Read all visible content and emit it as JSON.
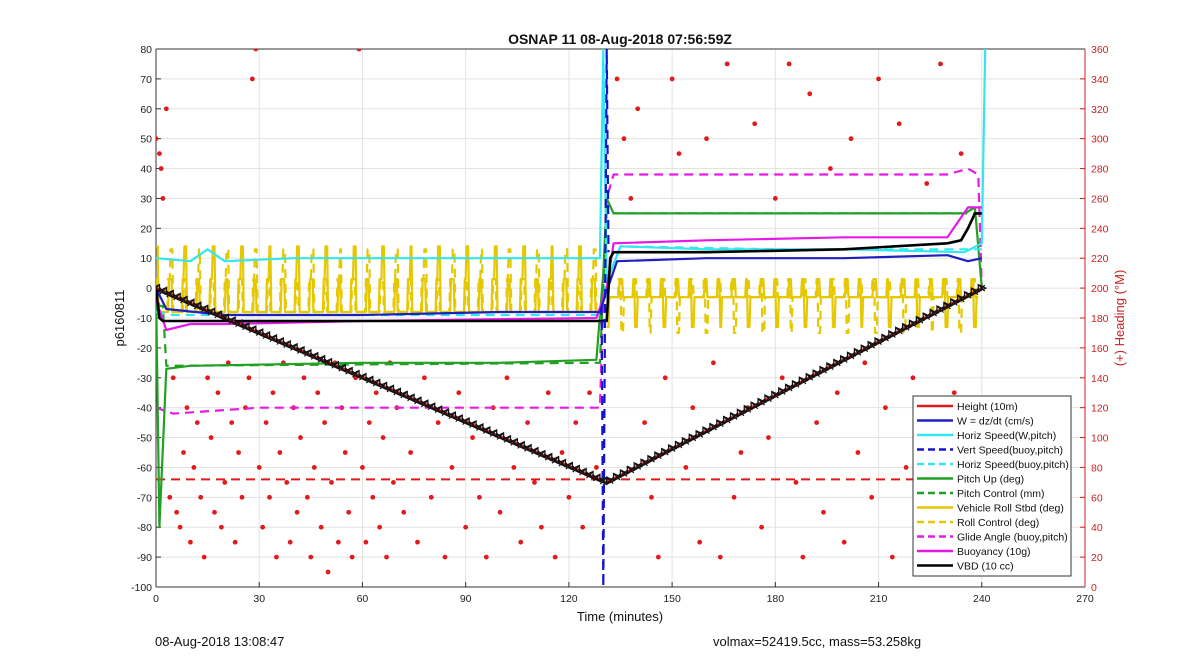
{
  "chart_data": {
    "type": "line",
    "title": "OSNAP 11 08-Aug-2018 07:56:59Z",
    "xlabel": "Time (minutes)",
    "ylabel_left": "p6160811",
    "ylabel_right": "(+) Heading (°M)",
    "xlim": [
      0,
      270
    ],
    "ylim_left": [
      -100,
      80
    ],
    "ylim_right": [
      0,
      360
    ],
    "xticks": [
      0,
      30,
      60,
      90,
      120,
      150,
      180,
      210,
      240,
      270
    ],
    "yticks_left": [
      -100,
      -90,
      -80,
      -70,
      -60,
      -50,
      -40,
      -30,
      -20,
      -10,
      0,
      10,
      20,
      30,
      40,
      50,
      60,
      70,
      80
    ],
    "yticks_right": [
      0,
      20,
      40,
      60,
      80,
      100,
      120,
      140,
      160,
      180,
      200,
      220,
      240,
      260,
      280,
      300,
      320,
      340,
      360
    ],
    "grid": true,
    "legend_position": "bottom-right",
    "colors": {
      "height": "#e31a1c",
      "w": "#1f1fbf",
      "horiz_speed": "#33e6f0",
      "vert_speed_buoy": "#1414d0",
      "pitch": "#22a022",
      "roll": "#e6c800",
      "glide": "#e619e6",
      "buoyancy": "#e619e6",
      "vbd": "#000000",
      "heading_dots": "#e31a1c",
      "right_axis": "#cc2222"
    },
    "series": [
      {
        "name": "Height (10m)",
        "key": "height",
        "style": "solid",
        "x": [
          0,
          131,
          240
        ],
        "y": [
          0,
          -65,
          0
        ]
      },
      {
        "name": "W = dz/dt (cm/s)",
        "key": "w",
        "style": "solid",
        "x": [
          0,
          3,
          20,
          60,
          100,
          129,
          131,
          134,
          160,
          200,
          230,
          236,
          240
        ],
        "y": [
          0,
          -7,
          -9,
          -9,
          -8,
          -8,
          -1,
          9,
          10,
          10,
          11,
          9,
          10
        ]
      },
      {
        "name": "Horiz Speed(W,pitch)",
        "key": "horiz_speed",
        "style": "solid",
        "x": [
          0,
          10,
          15,
          20,
          40,
          80,
          129,
          130,
          131,
          135,
          160,
          200,
          235,
          240,
          241
        ],
        "y": [
          10,
          9,
          13,
          9,
          10,
          10,
          10,
          80,
          2,
          14,
          13,
          13,
          12,
          15,
          80
        ]
      },
      {
        "name": "Vert Speed(buoy,pitch)",
        "key": "vert_speed_buoy",
        "style": "dashed",
        "x": [
          129.5,
          130,
          131,
          131.5
        ],
        "y": [
          -6,
          -100,
          80,
          12
        ]
      },
      {
        "name": "Horiz Speed(buoy,pitch)",
        "key": "horiz_speed_buoy",
        "style": "dashed",
        "x": [
          0,
          5,
          40,
          90,
          129,
          131,
          135,
          180,
          240
        ],
        "y": [
          -8,
          -9,
          -9,
          -9,
          -9,
          2,
          14,
          13,
          13
        ]
      },
      {
        "name": "Pitch Up (deg)",
        "key": "pitch",
        "style": "solid",
        "x": [
          0,
          1,
          3,
          10,
          60,
          100,
          128,
          130,
          131,
          133,
          160,
          200,
          235,
          238,
          240
        ],
        "y": [
          0,
          -80,
          -27,
          -26,
          -25,
          -25,
          -24,
          5,
          30,
          25,
          25,
          25,
          25,
          27,
          0
        ]
      },
      {
        "name": "Pitch Control (mm)",
        "key": "pitch_ctrl",
        "style": "dashed",
        "x": [
          0,
          1,
          2,
          3,
          129,
          131,
          133,
          240
        ],
        "y": [
          0,
          -6,
          -6,
          -26,
          -25,
          26,
          25,
          25
        ]
      },
      {
        "name": "Vehicle Roll Stbd (deg)",
        "key": "roll",
        "style": "solid",
        "start": 0,
        "end": 129,
        "period": 8.2,
        "level_low": -8,
        "level_high": 3,
        "spike": 14,
        "phase": 0
      },
      {
        "name": "Vehicle Roll Stbd (deg)",
        "key": "roll2",
        "style": "solid",
        "start": 131,
        "end": 239,
        "period": 8.2,
        "level_low": -3,
        "level_high": 3,
        "spike": -13,
        "phase": 0
      },
      {
        "name": "Roll Control (deg)",
        "key": "roll_ctrl",
        "style": "dashed",
        "start": 0,
        "end": 129,
        "period": 8.2,
        "level_low": -8,
        "level_high": 3,
        "spike": 13,
        "phase": 4.1
      },
      {
        "name": "Roll Control (deg)",
        "key": "roll_ctrl2",
        "style": "dashed",
        "start": 131,
        "end": 239,
        "period": 8.2,
        "level_low": -3,
        "level_high": 3,
        "spike": -15,
        "phase": 4.1
      },
      {
        "name": "Glide Angle (buoy,pitch)",
        "key": "glide",
        "style": "dashed",
        "x": [
          0,
          5,
          30,
          90,
          129,
          131,
          133,
          180,
          230,
          236,
          239,
          240
        ],
        "y": [
          -40,
          -42,
          -40,
          -40,
          -40,
          30,
          38,
          38,
          38,
          40,
          38,
          0
        ]
      },
      {
        "name": "Buoyancy (10g)",
        "key": "buoyancy",
        "style": "solid",
        "x": [
          0,
          3,
          10,
          20,
          60,
          128,
          131,
          133,
          160,
          200,
          230,
          236,
          240
        ],
        "y": [
          -4,
          -14,
          -12,
          -12,
          -11,
          -10,
          0,
          15,
          16,
          17,
          17,
          27,
          27
        ]
      },
      {
        "name": "VBD (10 cc)",
        "key": "vbd",
        "style": "solid",
        "x": [
          0,
          1,
          2,
          129,
          131,
          132,
          133,
          160,
          200,
          230,
          234,
          236,
          238,
          240
        ],
        "y": [
          0,
          -10,
          -11,
          -11,
          -11,
          10,
          12,
          12,
          13,
          15,
          16,
          20,
          25,
          25
        ]
      }
    ],
    "reference_line": {
      "key": "heading_ref",
      "heading_value": 72,
      "style": "dashed",
      "x": [
        0,
        240
      ]
    },
    "depth_marker_step_minutes": 2,
    "heading_dots": {
      "x": [
        0,
        1,
        1.5,
        2,
        3,
        4,
        5,
        6,
        7,
        8,
        9,
        10,
        11,
        12,
        13,
        14,
        15,
        16,
        17,
        18,
        19,
        20,
        21,
        22,
        23,
        24,
        25,
        26,
        27,
        28,
        29,
        30,
        31,
        32,
        33,
        34,
        35,
        36,
        37,
        38,
        39,
        40,
        41,
        42,
        43,
        44,
        45,
        46,
        47,
        48,
        49,
        50,
        51,
        52,
        53,
        54,
        55,
        56,
        57,
        58,
        59,
        60,
        61,
        62,
        63,
        64,
        65,
        66,
        67,
        68,
        69,
        70,
        72,
        74,
        76,
        78,
        80,
        82,
        84,
        86,
        88,
        90,
        92,
        94,
        96,
        98,
        100,
        102,
        104,
        106,
        108,
        110,
        112,
        114,
        116,
        118,
        120,
        122,
        124,
        126,
        128,
        134,
        136,
        138,
        140,
        142,
        144,
        146,
        148,
        150,
        152,
        154,
        156,
        158,
        160,
        162,
        164,
        166,
        168,
        170,
        172,
        174,
        176,
        178,
        180,
        182,
        184,
        186,
        188,
        190,
        192,
        194,
        196,
        198,
        200,
        202,
        204,
        206,
        208,
        210,
        212,
        214,
        216,
        218,
        220,
        222,
        224,
        226,
        228,
        230,
        232,
        234,
        236
      ],
      "y": [
        300,
        290,
        280,
        260,
        320,
        60,
        140,
        50,
        40,
        90,
        120,
        30,
        80,
        110,
        60,
        20,
        140,
        100,
        50,
        130,
        40,
        70,
        150,
        110,
        30,
        90,
        60,
        120,
        140,
        340,
        360,
        80,
        40,
        110,
        60,
        130,
        20,
        90,
        150,
        70,
        30,
        120,
        50,
        100,
        140,
        60,
        20,
        80,
        130,
        40,
        110,
        10,
        70,
        150,
        30,
        120,
        90,
        50,
        20,
        140,
        360,
        80,
        30,
        110,
        60,
        130,
        40,
        100,
        20,
        150,
        70,
        120,
        50,
        90,
        30,
        140,
        60,
        110,
        20,
        80,
        130,
        40,
        100,
        60,
        20,
        120,
        50,
        140,
        80,
        30,
        110,
        70,
        40,
        130,
        20,
        90,
        60,
        110,
        40,
        130,
        80,
        340,
        300,
        260,
        320,
        110,
        60,
        20,
        140,
        340,
        290,
        80,
        120,
        30,
        300,
        150,
        20,
        350,
        60,
        90,
        120,
        310,
        40,
        100,
        260,
        140,
        350,
        70,
        20,
        330,
        110,
        50,
        280,
        130,
        30,
        300,
        90,
        150,
        60,
        340,
        120,
        20,
        310,
        80,
        140,
        40,
        270,
        100,
        350,
        60,
        130,
        290,
        20
      ]
    }
  },
  "legend": {
    "items": [
      {
        "label": "Height (10m)",
        "key": "height"
      },
      {
        "label": "W = dz/dt (cm/s)",
        "key": "w"
      },
      {
        "label": "Horiz Speed(W,pitch)",
        "key": "horiz_speed"
      },
      {
        "label": "Vert Speed(buoy,pitch)",
        "key": "vert_speed_buoy"
      },
      {
        "label": "Horiz Speed(buoy,pitch)",
        "key": "horiz_speed_buoy"
      },
      {
        "label": "Pitch Up (deg)",
        "key": "pitch"
      },
      {
        "label": "Pitch Control (mm)",
        "key": "pitch_ctrl"
      },
      {
        "label": "Vehicle Roll Stbd (deg)",
        "key": "roll"
      },
      {
        "label": "Roll Control (deg)",
        "key": "roll_ctrl"
      },
      {
        "label": "Glide Angle (buoy,pitch)",
        "key": "glide"
      },
      {
        "label": "Buoyancy (10g)",
        "key": "buoyancy"
      },
      {
        "label": "VBD (10 cc)",
        "key": "vbd"
      }
    ]
  },
  "footer": {
    "left": "08-Aug-2018 13:08:47",
    "right": "volmax=52419.5cc, mass=53.258kg"
  }
}
